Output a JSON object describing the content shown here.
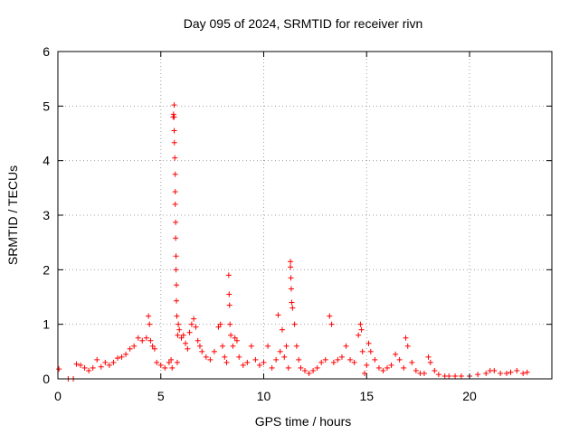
{
  "chart_data": {
    "type": "scatter",
    "title": "Day 095 of 2024, SRMTID for receiver rivn",
    "xlabel": "GPS time / hours",
    "ylabel": "SRMTID / TECUs",
    "xlim": [
      0,
      24
    ],
    "ylim": [
      0,
      6
    ],
    "xticks": [
      0,
      5,
      10,
      15,
      20
    ],
    "yticks": [
      0,
      1,
      2,
      3,
      4,
      5,
      6
    ],
    "grid": true,
    "marker": "+",
    "marker_color": "#ff0000",
    "series": [
      {
        "name": "SRMTID",
        "x": [
          0.05,
          0.5,
          0.75,
          0.9,
          1.1,
          1.3,
          1.5,
          1.7,
          1.9,
          2.1,
          2.3,
          2.5,
          2.7,
          2.9,
          3.1,
          3.3,
          3.5,
          3.7,
          3.9,
          4.1,
          4.3,
          4.4,
          4.45,
          4.5,
          4.6,
          4.7,
          4.8,
          5.0,
          5.2,
          5.4,
          5.5,
          5.55,
          5.6,
          5.62,
          5.65,
          5.65,
          5.65,
          5.66,
          5.68,
          5.7,
          5.7,
          5.7,
          5.72,
          5.72,
          5.74,
          5.74,
          5.76,
          5.76,
          5.78,
          5.8,
          5.82,
          5.85,
          5.9,
          6.0,
          6.1,
          6.2,
          6.3,
          6.4,
          6.5,
          6.6,
          6.7,
          6.8,
          6.9,
          7.0,
          7.2,
          7.4,
          7.6,
          7.8,
          7.9,
          8.0,
          8.1,
          8.2,
          8.3,
          8.32,
          8.34,
          8.36,
          8.4,
          8.5,
          8.6,
          8.7,
          8.8,
          9.0,
          9.2,
          9.4,
          9.6,
          9.8,
          10.0,
          10.2,
          10.4,
          10.6,
          10.7,
          10.8,
          10.9,
          11.0,
          11.1,
          11.2,
          11.3,
          11.3,
          11.32,
          11.34,
          11.36,
          11.4,
          11.5,
          11.6,
          11.7,
          11.8,
          12.0,
          12.2,
          12.4,
          12.6,
          12.8,
          13.0,
          13.2,
          13.3,
          13.4,
          13.6,
          13.8,
          14.0,
          14.2,
          14.4,
          14.6,
          14.7,
          14.75,
          14.8,
          14.9,
          15.0,
          15.1,
          15.2,
          15.4,
          15.6,
          15.8,
          16.0,
          16.2,
          16.4,
          16.6,
          16.8,
          16.9,
          17.0,
          17.2,
          17.4,
          17.6,
          17.8,
          18.0,
          18.1,
          18.3,
          18.5,
          18.8,
          19.0,
          19.3,
          19.6,
          20.0,
          20.4,
          20.8,
          21.0,
          21.2,
          21.5,
          21.8,
          22.0,
          22.3,
          22.6,
          22.8
        ],
        "y": [
          0.18,
          0.0,
          0.0,
          0.27,
          0.25,
          0.2,
          0.15,
          0.2,
          0.35,
          0.22,
          0.3,
          0.25,
          0.3,
          0.38,
          0.4,
          0.45,
          0.55,
          0.6,
          0.75,
          0.7,
          0.75,
          1.15,
          1.0,
          0.7,
          0.6,
          0.55,
          0.3,
          0.25,
          0.2,
          0.3,
          0.35,
          0.2,
          4.8,
          4.85,
          5.02,
          4.8,
          4.55,
          4.33,
          4.05,
          3.75,
          3.43,
          3.2,
          2.87,
          2.58,
          2.25,
          2.0,
          1.72,
          1.43,
          1.15,
          0.3,
          0.8,
          1.0,
          0.9,
          0.75,
          0.8,
          0.65,
          0.55,
          0.85,
          1.0,
          1.1,
          0.95,
          0.7,
          0.6,
          0.5,
          0.4,
          0.35,
          0.5,
          0.95,
          1.0,
          0.6,
          0.4,
          0.3,
          1.9,
          1.55,
          1.35,
          1.0,
          0.8,
          0.6,
          0.75,
          0.7,
          0.4,
          0.25,
          0.3,
          0.6,
          0.35,
          0.25,
          0.3,
          0.6,
          0.2,
          0.35,
          1.17,
          0.5,
          0.9,
          0.4,
          0.6,
          0.2,
          2.15,
          2.05,
          1.85,
          1.65,
          1.4,
          1.3,
          1.0,
          0.6,
          0.35,
          0.2,
          0.15,
          0.1,
          0.15,
          0.2,
          0.3,
          0.35,
          1.15,
          1.0,
          0.3,
          0.35,
          0.4,
          0.6,
          0.35,
          0.3,
          0.8,
          1.0,
          0.9,
          0.5,
          0.1,
          0.25,
          0.65,
          0.5,
          0.35,
          0.2,
          0.15,
          0.2,
          0.25,
          0.45,
          0.35,
          0.2,
          0.75,
          0.6,
          0.3,
          0.15,
          0.1,
          0.1,
          0.4,
          0.3,
          0.15,
          0.08,
          0.05,
          0.05,
          0.05,
          0.05,
          0.05,
          0.08,
          0.1,
          0.15,
          0.15,
          0.1,
          0.1,
          0.12,
          0.15,
          0.1,
          0.12
        ]
      }
    ]
  }
}
